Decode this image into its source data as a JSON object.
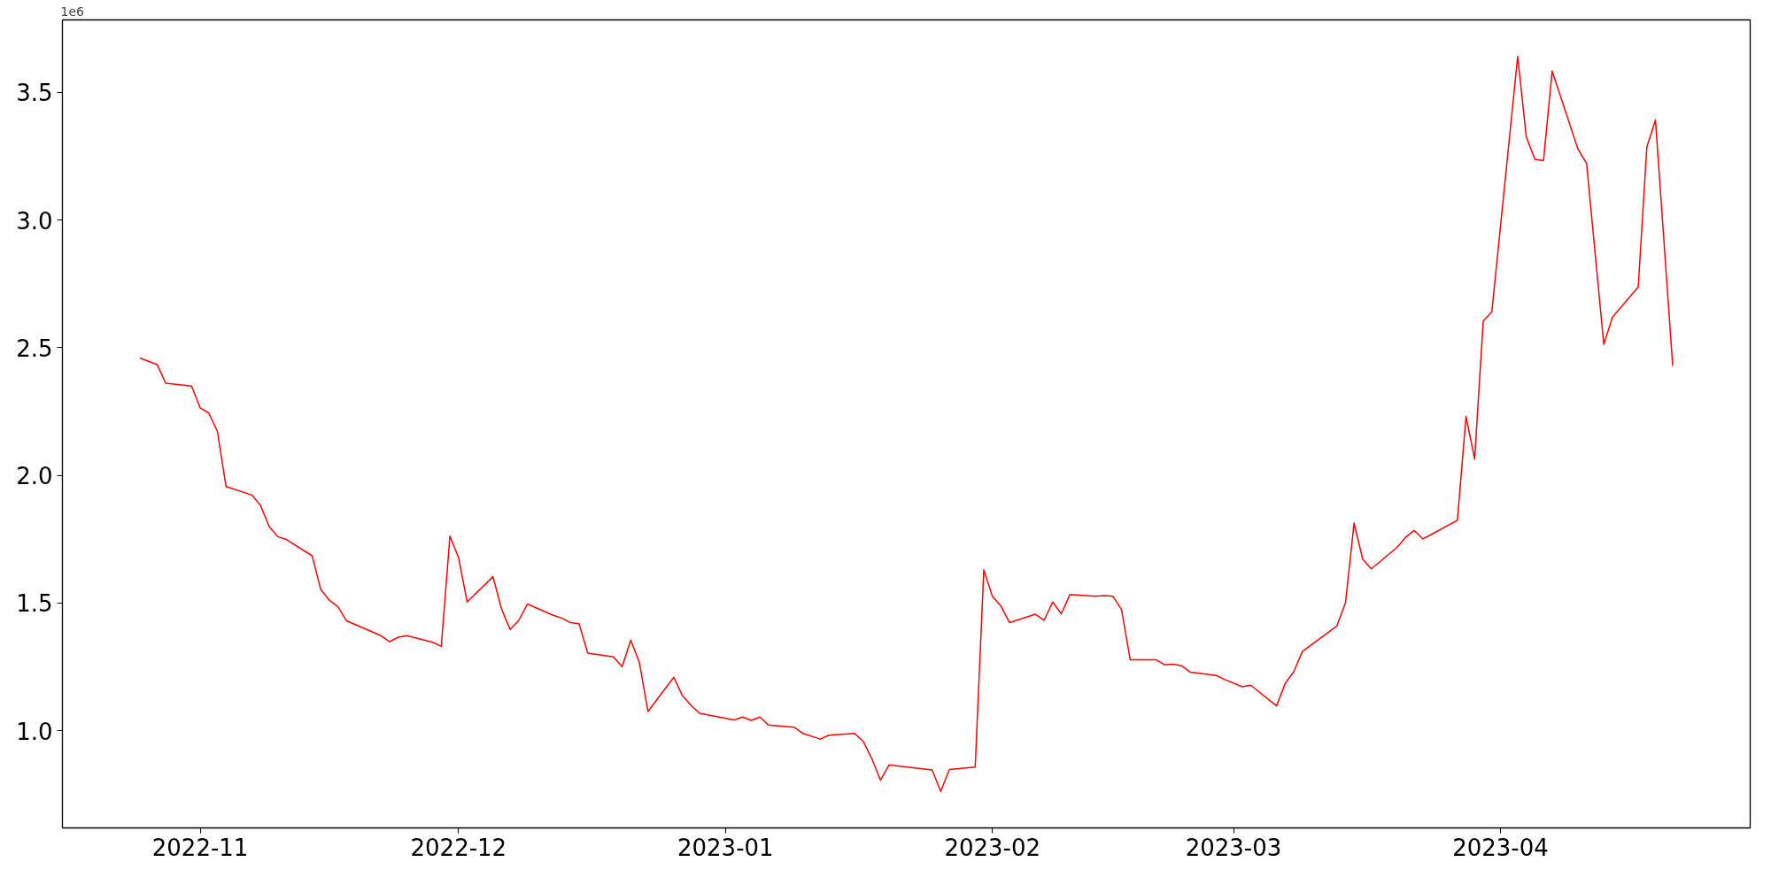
{
  "chart_data": {
    "type": "line",
    "x": [
      "2022-10-25",
      "2022-10-26",
      "2022-10-27",
      "2022-10-28",
      "2022-10-31",
      "2022-11-01",
      "2022-11-02",
      "2022-11-03",
      "2022-11-04",
      "2022-11-07",
      "2022-11-08",
      "2022-11-09",
      "2022-11-10",
      "2022-11-11",
      "2022-11-14",
      "2022-11-15",
      "2022-11-16",
      "2022-11-17",
      "2022-11-18",
      "2022-11-22",
      "2022-11-23",
      "2022-11-24",
      "2022-11-25",
      "2022-11-28",
      "2022-11-29",
      "2022-11-30",
      "2022-12-01",
      "2022-12-02",
      "2022-12-05",
      "2022-12-06",
      "2022-12-07",
      "2022-12-08",
      "2022-12-09",
      "2022-12-12",
      "2022-12-13",
      "2022-12-14",
      "2022-12-15",
      "2022-12-16",
      "2022-12-19",
      "2022-12-20",
      "2022-12-21",
      "2022-12-22",
      "2022-12-23",
      "2022-12-26",
      "2022-12-27",
      "2022-12-28",
      "2022-12-29",
      "2023-01-02",
      "2023-01-03",
      "2023-01-04",
      "2023-01-05",
      "2023-01-06",
      "2023-01-09",
      "2023-01-10",
      "2023-01-12",
      "2023-01-13",
      "2023-01-16",
      "2023-01-17",
      "2023-01-18",
      "2023-01-19",
      "2023-01-20",
      "2023-01-25",
      "2023-01-26",
      "2023-01-27",
      "2023-01-30",
      "2023-01-31",
      "2023-02-01",
      "2023-02-02",
      "2023-02-03",
      "2023-02-06",
      "2023-02-07",
      "2023-02-08",
      "2023-02-09",
      "2023-02-10",
      "2023-02-13",
      "2023-02-14",
      "2023-02-15",
      "2023-02-16",
      "2023-02-17",
      "2023-02-20",
      "2023-02-21",
      "2023-02-22",
      "2023-02-23",
      "2023-02-24",
      "2023-02-27",
      "2023-02-28",
      "2023-03-02",
      "2023-03-03",
      "2023-03-06",
      "2023-03-07",
      "2023-03-08",
      "2023-03-09",
      "2023-03-13",
      "2023-03-14",
      "2023-03-15",
      "2023-03-16",
      "2023-03-17",
      "2023-03-20",
      "2023-03-21",
      "2023-03-22",
      "2023-03-23",
      "2023-03-24",
      "2023-03-27",
      "2023-03-28",
      "2023-03-29",
      "2023-03-30",
      "2023-03-31",
      "2023-04-03",
      "2023-04-04",
      "2023-04-05",
      "2023-04-06",
      "2023-04-07",
      "2023-04-10",
      "2023-04-11",
      "2023-04-13",
      "2023-04-14",
      "2023-04-17",
      "2023-04-18",
      "2023-04-19",
      "2023-04-21"
    ],
    "series": [
      {
        "color": "#ff0000",
        "values": [
          2.46,
          2.447,
          2.434,
          2.361,
          2.35,
          2.264,
          2.244,
          2.172,
          1.956,
          1.923,
          1.883,
          1.8,
          1.76,
          1.749,
          1.685,
          1.553,
          1.511,
          1.485,
          1.43,
          1.372,
          1.348,
          1.366,
          1.372,
          1.346,
          1.33,
          1.762,
          1.678,
          1.504,
          1.603,
          1.476,
          1.396,
          1.432,
          1.496,
          1.452,
          1.441,
          1.423,
          1.419,
          1.304,
          1.289,
          1.251,
          1.355,
          1.267,
          1.075,
          1.209,
          1.137,
          1.099,
          1.068,
          1.042,
          1.053,
          1.04,
          1.053,
          1.022,
          1.013,
          0.989,
          0.967,
          0.982,
          0.989,
          0.958,
          0.89,
          0.806,
          0.866,
          0.846,
          0.762,
          0.848,
          0.857,
          1.63,
          1.526,
          1.487,
          1.423,
          1.456,
          1.432,
          1.504,
          1.458,
          1.533,
          1.526,
          1.529,
          1.526,
          1.474,
          1.278,
          1.278,
          1.258,
          1.26,
          1.254,
          1.229,
          1.216,
          1.2,
          1.172,
          1.178,
          1.097,
          1.185,
          1.231,
          1.31,
          1.41,
          1.5,
          1.813,
          1.672,
          1.634,
          1.718,
          1.758,
          1.784,
          1.751,
          1.769,
          1.824,
          2.231,
          2.064,
          2.604,
          2.641,
          3.641,
          3.326,
          3.238,
          3.233,
          3.584,
          3.278,
          3.222,
          2.513,
          2.619,
          2.738,
          3.286,
          3.392,
          2.43
        ]
      }
    ],
    "xlim": [
      "2022-10-16",
      "2023-04-30"
    ],
    "xticks": [
      "2022-11",
      "2022-12",
      "2023-01",
      "2023-02",
      "2023-03",
      "2023-04"
    ],
    "ylim": [
      0.619,
      3.784
    ],
    "yticks": [
      {
        "value": 1,
        "label": "1.0"
      },
      1.5,
      {
        "value": 2,
        "label": "2.0"
      },
      2.5,
      {
        "value": 3,
        "label": "3.0"
      },
      3.5
    ],
    "annotations": [
      "1e6"
    ],
    "grid": false,
    "marker": "none",
    "line_style": "solid"
  }
}
